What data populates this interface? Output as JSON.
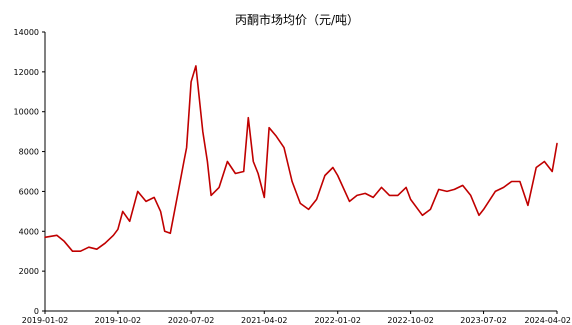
{
  "chart_data": {
    "type": "line",
    "title": "丙酮市场均价（元/吨）",
    "xlabel": "",
    "ylabel": "",
    "ylim": [
      0,
      14000
    ],
    "xlim": [
      "2019-01-02",
      "2024-04-02"
    ],
    "y_ticks": [
      "0",
      "2000",
      "4000",
      "6000",
      "8000",
      "10000",
      "12000",
      "14000"
    ],
    "x_ticks": [
      {
        "date": "2019-01-02",
        "label": "2019-01-02"
      },
      {
        "date": "2019-10-02",
        "label": "2019-10-02"
      },
      {
        "date": "2020-07-02",
        "label": "2020-07-02"
      },
      {
        "date": "2021-04-02",
        "label": "2021-04-02"
      },
      {
        "date": "2022-01-02",
        "label": "2022-01-02"
      },
      {
        "date": "2022-10-02",
        "label": "2022-10-02"
      },
      {
        "date": "2023-07-02",
        "label": "2023-07-02"
      },
      {
        "date": "2024-04-02",
        "label": "2024-04-02"
      }
    ],
    "grid": false,
    "legend": "none",
    "line_color": "#c00000",
    "series": [
      {
        "x": [
          "2019-01-02",
          "2019-02-15",
          "2019-03-15",
          "2019-04-15",
          "2019-05-15",
          "2019-06-15",
          "2019-07-15",
          "2019-08-15",
          "2019-09-15",
          "2019-10-02",
          "2019-10-20",
          "2019-11-15",
          "2019-12-15",
          "2020-01-15",
          "2020-02-15",
          "2020-03-10",
          "2020-03-25",
          "2020-04-15",
          "2020-05-15",
          "2020-06-05",
          "2020-06-15",
          "2020-07-02",
          "2020-07-20",
          "2020-08-15",
          "2020-09-01",
          "2020-09-15",
          "2020-10-15",
          "2020-11-15",
          "2020-12-15",
          "2021-01-15",
          "2021-02-01",
          "2021-02-20",
          "2021-03-10",
          "2021-04-02",
          "2021-04-20",
          "2021-05-15",
          "2021-06-15",
          "2021-07-15",
          "2021-08-15",
          "2021-09-15",
          "2021-10-15",
          "2021-11-15",
          "2021-12-15",
          "2022-01-02",
          "2022-02-15",
          "2022-03-15",
          "2022-04-15",
          "2022-05-15",
          "2022-06-15",
          "2022-07-15",
          "2022-08-15",
          "2022-09-15",
          "2022-10-02",
          "2022-11-15",
          "2022-12-15",
          "2023-01-15",
          "2023-02-15",
          "2023-03-15",
          "2023-04-15",
          "2023-05-15",
          "2023-06-15",
          "2023-07-02",
          "2023-08-15",
          "2023-09-15",
          "2023-10-15",
          "2023-11-15",
          "2023-12-15",
          "2024-01-15",
          "2024-02-15",
          "2024-03-15",
          "2024-04-02"
        ],
        "y": [
          3700,
          3800,
          3500,
          3000,
          3000,
          3200,
          3100,
          3400,
          3800,
          4100,
          5000,
          4500,
          6000,
          5500,
          5700,
          5000,
          4000,
          3900,
          6000,
          7500,
          8200,
          11500,
          12300,
          9000,
          7500,
          5800,
          6200,
          7500,
          6900,
          7000,
          9700,
          7500,
          6900,
          5700,
          9200,
          8800,
          8200,
          6500,
          5400,
          5100,
          5600,
          6800,
          7200,
          6800,
          5500,
          5800,
          5900,
          5700,
          6200,
          5800,
          5800,
          6200,
          5600,
          4800,
          5100,
          6100,
          6000,
          6100,
          6300,
          5800,
          4800,
          5100,
          6000,
          6200,
          6500,
          6500,
          5300,
          7200,
          7500,
          7000,
          8400
        ]
      }
    ]
  }
}
